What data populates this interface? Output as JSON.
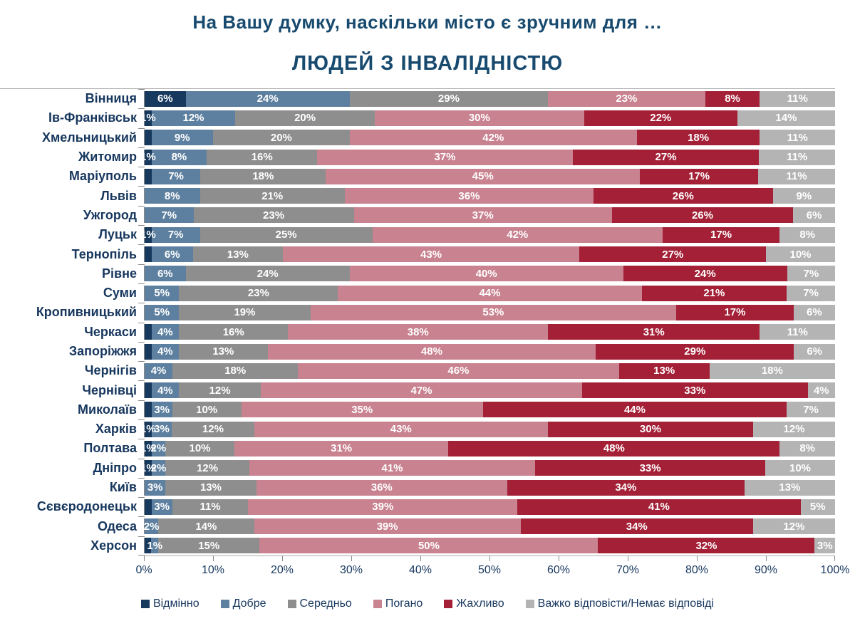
{
  "title": "На Вашу думку, наскільки місто є зручним для …",
  "subtitle": "ЛЮДЕЙ З ІНВАЛІДНІСТЮ",
  "colors": {
    "excellent": "#17395E",
    "good": "#5E80A0",
    "average": "#8E8E8E",
    "bad": "#C9828F",
    "terrible": "#A32036",
    "no_answer": "#B4B4B4",
    "title_text": "#174A6E",
    "label_text": "#17375E",
    "axis_line": "#ABABAB"
  },
  "legend": {
    "items": [
      {
        "label": "Відмінно",
        "color": "#17395E"
      },
      {
        "label": "Добре",
        "color": "#5E80A0"
      },
      {
        "label": "Середньо",
        "color": "#8E8E8E"
      },
      {
        "label": "Погано",
        "color": "#C9828F"
      },
      {
        "label": "Жахливо",
        "color": "#A32036"
      },
      {
        "label": "Важко відповісти/Немає відповіді",
        "color": "#B4B4B4"
      }
    ]
  },
  "x_axis": {
    "ticks": [
      "0%",
      "10%",
      "20%",
      "30%",
      "40%",
      "50%",
      "60%",
      "70%",
      "80%",
      "90%",
      "100%"
    ]
  },
  "chart_data": {
    "type": "bar",
    "stacked": true,
    "orientation": "horizontal",
    "xlim": [
      0,
      100
    ],
    "legend_position": "bottom",
    "series_names": [
      "Відмінно",
      "Добре",
      "Середньо",
      "Погано",
      "Жахливо",
      "Важко відповісти/Немає відповіді"
    ],
    "rows": [
      {
        "city": "Вінниця",
        "values": [
          6,
          24,
          29,
          23,
          8,
          11
        ],
        "labels": [
          "6%",
          "24%",
          "29%",
          "23%",
          "8%",
          "11%"
        ]
      },
      {
        "city": "Ів-Франківськ",
        "values": [
          1,
          12,
          20,
          30,
          22,
          14
        ],
        "labels": [
          "1%",
          "12%",
          "20%",
          "30%",
          "22%",
          "14%"
        ]
      },
      {
        "city": "Хмельницький",
        "values": [
          1,
          9,
          20,
          42,
          18,
          11
        ],
        "labels": [
          "",
          "9%",
          "20%",
          "42%",
          "18%",
          "11%"
        ]
      },
      {
        "city": "Житомир",
        "values": [
          1,
          8,
          16,
          37,
          27,
          11
        ],
        "labels": [
          "1%",
          "8%",
          "16%",
          "37%",
          "27%",
          "11%"
        ]
      },
      {
        "city": "Маріуполь",
        "values": [
          1,
          7,
          18,
          45,
          17,
          11
        ],
        "labels": [
          "",
          "7%",
          "18%",
          "45%",
          "17%",
          "11%"
        ]
      },
      {
        "city": "Львів",
        "values": [
          0,
          8,
          21,
          36,
          26,
          9
        ],
        "labels": [
          "",
          "8%",
          "21%",
          "36%",
          "26%",
          "9%"
        ]
      },
      {
        "city": "Ужгород",
        "values": [
          0,
          7,
          23,
          37,
          26,
          6
        ],
        "labels": [
          "",
          "7%",
          "23%",
          "37%",
          "26%",
          "6%"
        ]
      },
      {
        "city": "Луцьк",
        "values": [
          1,
          7,
          25,
          42,
          17,
          8
        ],
        "labels": [
          "1%",
          "7%",
          "25%",
          "42%",
          "17%",
          "8%"
        ]
      },
      {
        "city": "Тернопіль",
        "values": [
          1,
          6,
          13,
          43,
          27,
          10
        ],
        "labels": [
          "",
          "6%",
          "13%",
          "43%",
          "27%",
          "10%"
        ]
      },
      {
        "city": "Рівне",
        "values": [
          0,
          6,
          24,
          40,
          24,
          7
        ],
        "labels": [
          "",
          "6%",
          "24%",
          "40%",
          "24%",
          "7%"
        ]
      },
      {
        "city": "Суми",
        "values": [
          0,
          5,
          23,
          44,
          21,
          7
        ],
        "labels": [
          "",
          "5%",
          "23%",
          "44%",
          "21%",
          "7%"
        ]
      },
      {
        "city": "Кропивницький",
        "values": [
          0,
          5,
          19,
          53,
          17,
          6
        ],
        "labels": [
          "",
          "5%",
          "19%",
          "53%",
          "17%",
          "6%"
        ]
      },
      {
        "city": "Черкаси",
        "values": [
          1,
          4,
          16,
          38,
          31,
          11
        ],
        "labels": [
          "",
          "4%",
          "16%",
          "38%",
          "31%",
          "11%"
        ]
      },
      {
        "city": "Запоріжжя",
        "values": [
          1,
          4,
          13,
          48,
          29,
          6
        ],
        "labels": [
          "",
          "4%",
          "13%",
          "48%",
          "29%",
          "6%"
        ]
      },
      {
        "city": "Чернігів",
        "values": [
          0,
          4,
          18,
          46,
          13,
          18
        ],
        "labels": [
          "",
          "4%",
          "18%",
          "46%",
          "13%",
          "18%"
        ]
      },
      {
        "city": "Чернівці",
        "values": [
          1,
          4,
          12,
          47,
          33,
          4
        ],
        "labels": [
          "",
          "4%",
          "12%",
          "47%",
          "33%",
          "4%"
        ]
      },
      {
        "city": "Миколаїв",
        "values": [
          1,
          3,
          10,
          35,
          44,
          7
        ],
        "labels": [
          "",
          "3%",
          "10%",
          "35%",
          "44%",
          "7%"
        ]
      },
      {
        "city": "Харків",
        "values": [
          1,
          3,
          12,
          43,
          30,
          12
        ],
        "labels": [
          "1%",
          "3%",
          "12%",
          "43%",
          "30%",
          "12%"
        ]
      },
      {
        "city": "Полтава",
        "values": [
          1,
          2,
          10,
          31,
          48,
          8
        ],
        "labels": [
          "1%",
          "2%",
          "10%",
          "31%",
          "48%",
          "8%"
        ]
      },
      {
        "city": "Дніпро",
        "values": [
          1,
          2,
          12,
          41,
          33,
          10
        ],
        "labels": [
          "1%",
          "2%",
          "12%",
          "41%",
          "33%",
          "10%"
        ]
      },
      {
        "city": "Київ",
        "values": [
          0,
          3,
          13,
          36,
          34,
          13
        ],
        "labels": [
          "",
          "3%",
          "13%",
          "36%",
          "34%",
          "13%"
        ]
      },
      {
        "city": "Сєвєродонецьк",
        "values": [
          1,
          3,
          11,
          39,
          41,
          5
        ],
        "labels": [
          "",
          "3%",
          "11%",
          "39%",
          "41%",
          "5%"
        ]
      },
      {
        "city": "Одеса",
        "values": [
          0,
          2,
          14,
          39,
          34,
          12
        ],
        "labels": [
          "",
          "2%",
          "14%",
          "39%",
          "34%",
          "12%"
        ]
      },
      {
        "city": "Херсон",
        "values": [
          1,
          1,
          15,
          50,
          32,
          3
        ],
        "labels": [
          "",
          "1%",
          "15%",
          "50%",
          "32%",
          "3%"
        ]
      }
    ]
  }
}
